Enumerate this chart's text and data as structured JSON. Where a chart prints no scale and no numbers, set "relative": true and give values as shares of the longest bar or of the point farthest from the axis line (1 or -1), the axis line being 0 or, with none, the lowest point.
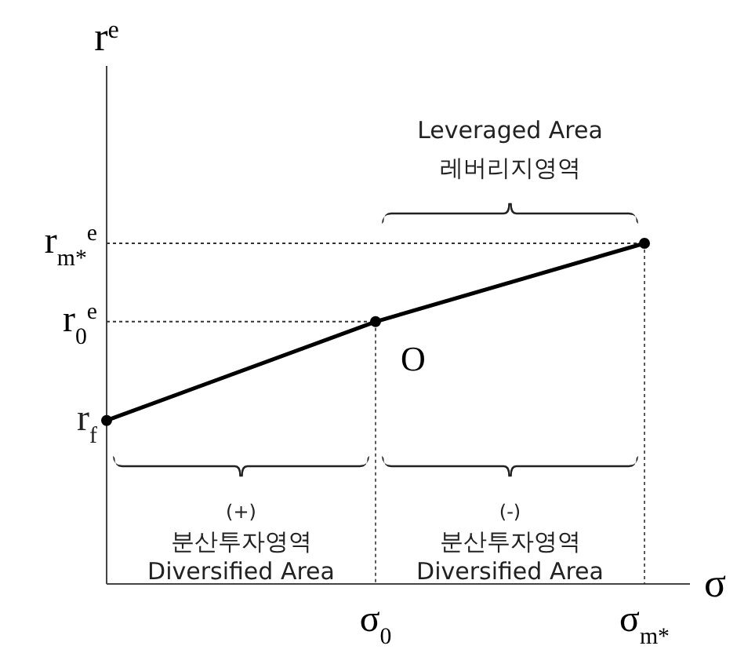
{
  "chart_data": {
    "type": "line",
    "xlabel": "σ",
    "ylabel": "r$^{e}$",
    "categories": [
      null,
      "σ$_{0}$",
      "σ$_{m*}$"
    ],
    "relative": true,
    "series": [
      {
        "color": "#000000",
        "values": [
          0.48,
          0.77,
          1
        ]
      }
    ],
    "marker": "circle",
    "ref_lines": [
      {
        "axis": "y",
        "value": 0.77,
        "label": "r$_{0}$$^{e}$",
        "line_style": "dotted"
      },
      {
        "axis": "y",
        "value": 1,
        "label": "r$_{m*}$$^{e}$",
        "line_style": "dotted"
      },
      {
        "axis": "x",
        "value": "σ$_{0}$",
        "line_style": "dotted"
      },
      {
        "axis": "x",
        "value": "σ$_{m*}$",
        "line_style": "dotted"
      }
    ],
    "annotations": [
      "r$_{f}$",
      {
        "text": "O",
        "x": "σ$_{0}$",
        "y": 0.77
      },
      "Leveraged Area",
      "레버리지영역",
      "(+)",
      "분산투자영역",
      "Diversified Area",
      "(-)",
      "분산투자영역",
      "Diversified Area"
    ]
  }
}
